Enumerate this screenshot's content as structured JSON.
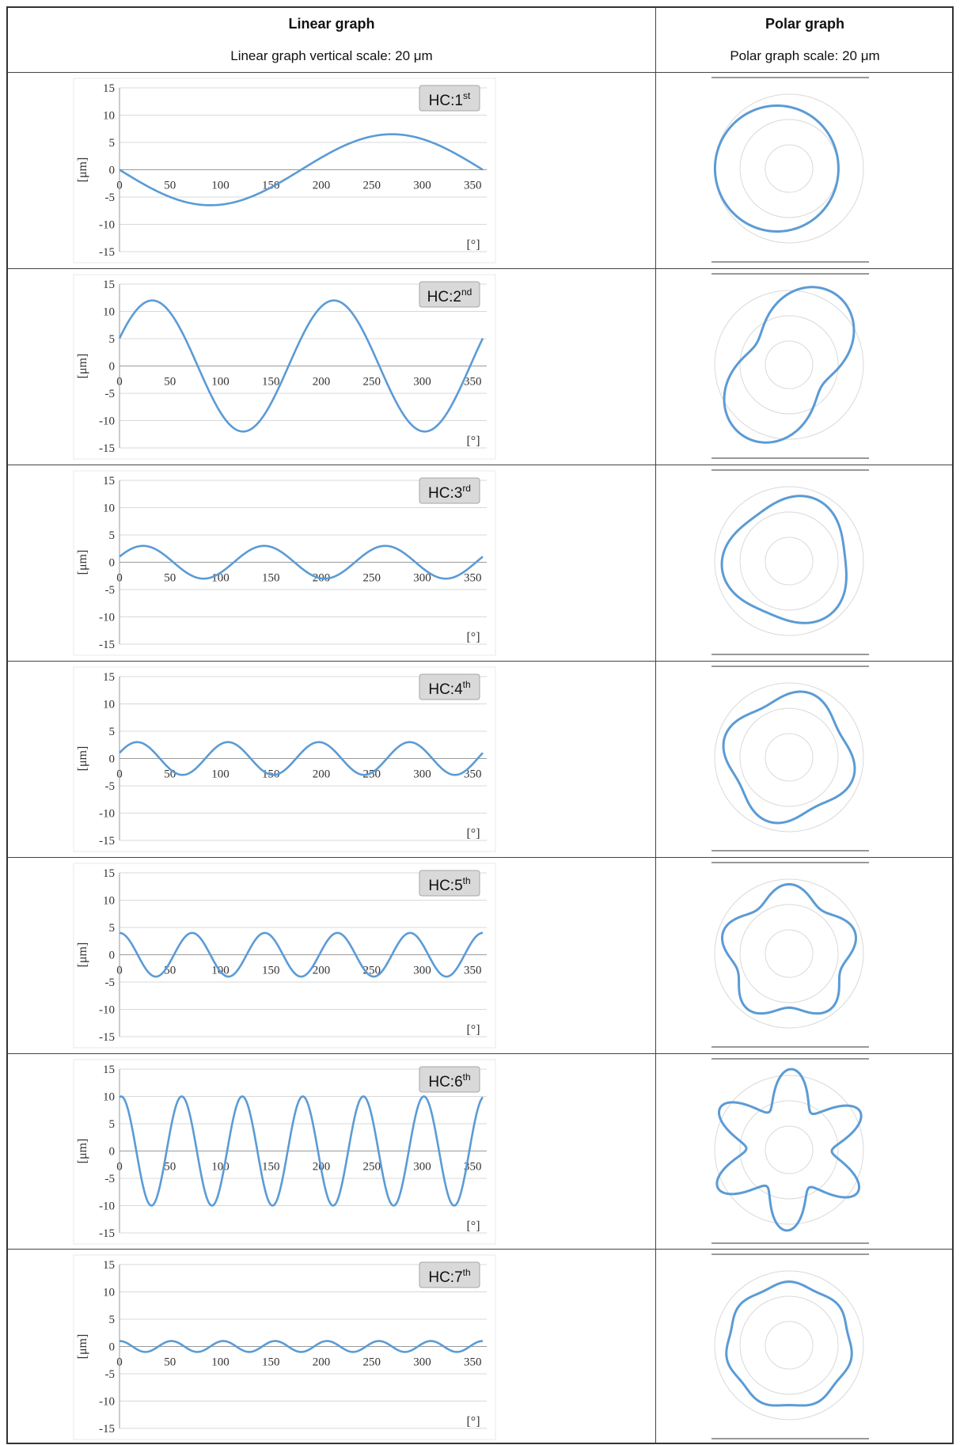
{
  "table": {
    "headers": {
      "linear": "Linear graph",
      "polar": "Polar graph"
    },
    "subheaders": {
      "linear": "Linear graph vertical scale: 20 μm",
      "polar": "Polar graph scale: 20 μm"
    }
  },
  "line_color": "#5b9bd5",
  "chart_data": [
    {
      "type": "line",
      "harmonic": 1,
      "label_base": "HC:1",
      "label_sup": "st",
      "amplitude": 6.5,
      "phase_deg": 180,
      "xlabel": "[°]",
      "ylabel": "[μm]",
      "xlim": [
        0,
        360
      ],
      "ylim": [
        -15,
        15
      ],
      "xticks": [
        0,
        50,
        100,
        150,
        200,
        250,
        300,
        350
      ],
      "yticks": [
        15,
        10,
        5,
        0,
        -5,
        -10,
        -15
      ],
      "grid": true
    },
    {
      "type": "line",
      "harmonic": 2,
      "label_base": "HC:2",
      "label_sup": "nd",
      "amplitude": 12,
      "phase_deg": 25,
      "xlabel": "[°]",
      "ylabel": "[μm]",
      "xlim": [
        0,
        360
      ],
      "ylim": [
        -15,
        15
      ],
      "xticks": [
        0,
        50,
        100,
        150,
        200,
        250,
        300,
        350
      ],
      "yticks": [
        15,
        10,
        5,
        0,
        -5,
        -10,
        -15
      ],
      "grid": true
    },
    {
      "type": "line",
      "harmonic": 3,
      "label_base": "HC:3",
      "label_sup": "rd",
      "amplitude": 3,
      "phase_deg": 20,
      "xlabel": "[°]",
      "ylabel": "[μm]",
      "xlim": [
        0,
        360
      ],
      "ylim": [
        -15,
        15
      ],
      "xticks": [
        0,
        50,
        100,
        150,
        200,
        250,
        300,
        350
      ],
      "yticks": [
        15,
        10,
        5,
        0,
        -5,
        -10,
        -15
      ],
      "grid": true
    },
    {
      "type": "line",
      "harmonic": 4,
      "label_base": "HC:4",
      "label_sup": "th",
      "amplitude": 3,
      "phase_deg": 20,
      "xlabel": "[°]",
      "ylabel": "[μm]",
      "xlim": [
        0,
        360
      ],
      "ylim": [
        -15,
        15
      ],
      "xticks": [
        0,
        50,
        100,
        150,
        200,
        250,
        300,
        350
      ],
      "yticks": [
        15,
        10,
        5,
        0,
        -5,
        -10,
        -15
      ],
      "grid": true
    },
    {
      "type": "line",
      "harmonic": 5,
      "label_base": "HC:5",
      "label_sup": "th",
      "amplitude": 4,
      "phase_deg": 90,
      "xlabel": "[°]",
      "ylabel": "[μm]",
      "xlim": [
        0,
        360
      ],
      "ylim": [
        -15,
        15
      ],
      "xticks": [
        0,
        50,
        100,
        150,
        200,
        250,
        300,
        350
      ],
      "yticks": [
        15,
        10,
        5,
        0,
        -5,
        -10,
        -15
      ],
      "grid": true
    },
    {
      "type": "line",
      "harmonic": 6,
      "label_base": "HC:6",
      "label_sup": "th",
      "amplitude": 10,
      "phase_deg": 80,
      "xlabel": "[°]",
      "ylabel": "[μm]",
      "xlim": [
        0,
        360
      ],
      "ylim": [
        -15,
        15
      ],
      "xticks": [
        0,
        50,
        100,
        150,
        200,
        250,
        300,
        350
      ],
      "yticks": [
        15,
        10,
        5,
        0,
        -5,
        -10,
        -15
      ],
      "grid": true
    },
    {
      "type": "line",
      "harmonic": 7,
      "label_base": "HC:7",
      "label_sup": "th",
      "amplitude": 1,
      "phase_deg": 90,
      "xlabel": "[°]",
      "ylabel": "[μm]",
      "xlim": [
        0,
        360
      ],
      "ylim": [
        -15,
        15
      ],
      "xticks": [
        0,
        50,
        100,
        150,
        200,
        250,
        300,
        350
      ],
      "yticks": [
        15,
        10,
        5,
        0,
        -5,
        -10,
        -15
      ],
      "grid": true
    }
  ]
}
